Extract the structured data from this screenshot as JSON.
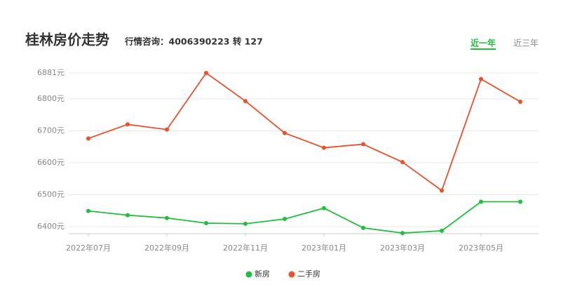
{
  "chart_data": {
    "type": "line",
    "title": "桂林房价走势",
    "subtitle": "行情咨询：4006390223 转 127",
    "tabs": [
      "近一年",
      "近三年"
    ],
    "active_tab": 0,
    "categories": [
      "2022年07月",
      null,
      "2022年09月",
      null,
      "2022年11月",
      null,
      "2023年01月",
      null,
      "2023年03月",
      null,
      "2023年05月",
      null
    ],
    "series": [
      {
        "name": "新房",
        "color": "#1fbe3c",
        "values": [
          6449,
          6436,
          6427,
          6411,
          6409,
          6424,
          6458,
          6396,
          6380,
          6387,
          6478,
          6478
        ]
      },
      {
        "name": "二手房",
        "color": "#ec4f2b",
        "values": [
          6676,
          6720,
          6704,
          6881,
          6793,
          6693,
          6647,
          6658,
          6602,
          6513,
          6862,
          6791
        ]
      }
    ],
    "ylim": [
      6378,
      6881
    ],
    "yticks": [
      {
        "value": 6400,
        "label": "6400元"
      },
      {
        "value": 6500,
        "label": "6500元"
      },
      {
        "value": 6600,
        "label": "6600元"
      },
      {
        "value": 6700,
        "label": "6700元"
      },
      {
        "value": 6800,
        "label": "6800元"
      },
      {
        "value": 6881,
        "label": "6881元"
      }
    ],
    "grid": true,
    "legend": "bottom"
  }
}
